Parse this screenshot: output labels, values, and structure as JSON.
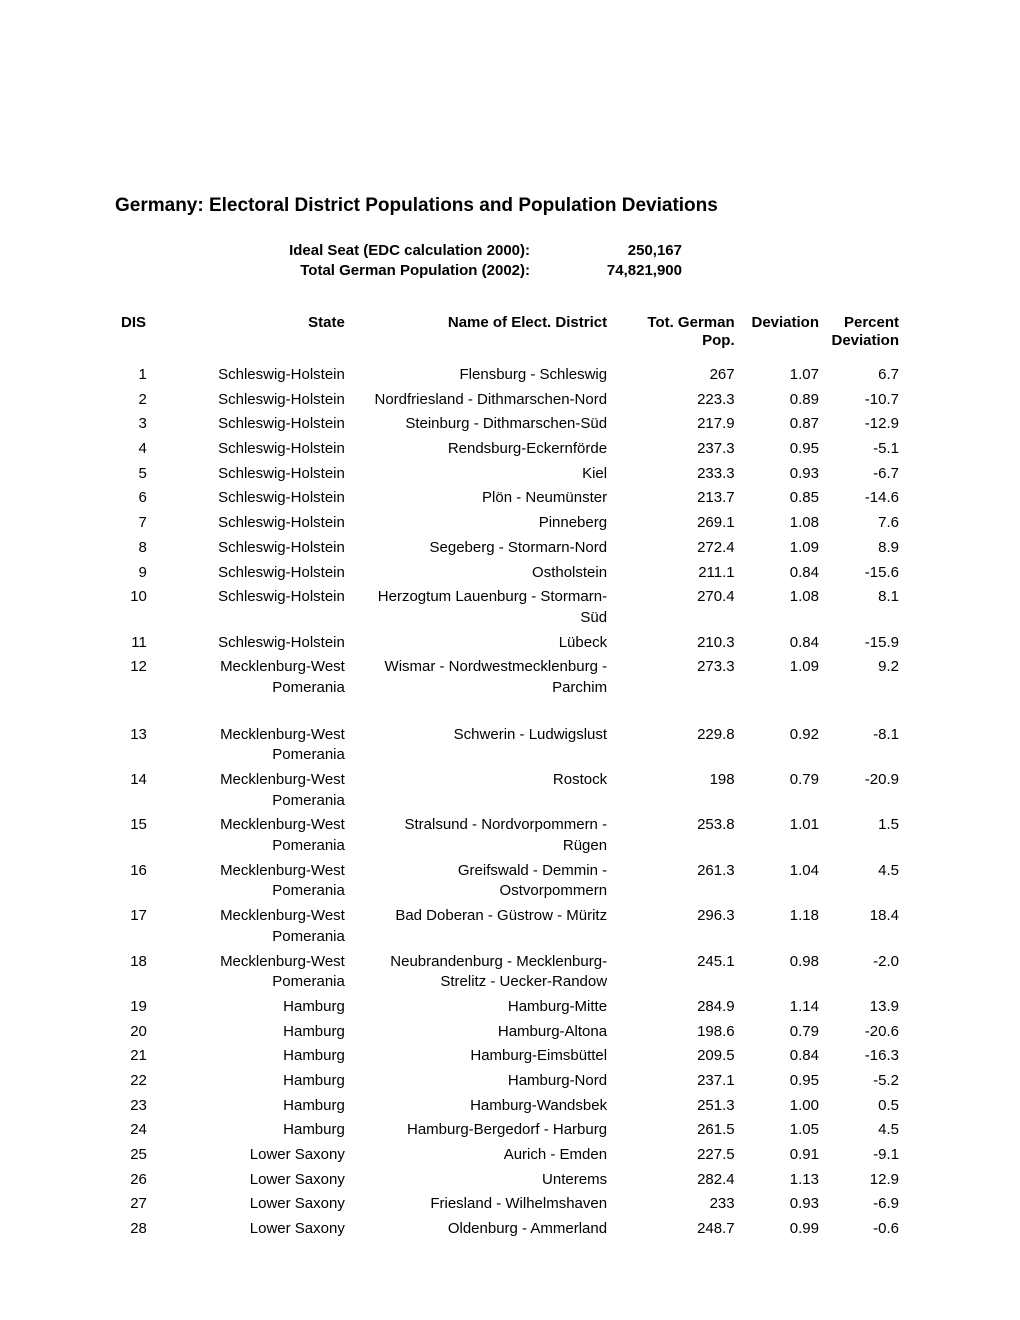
{
  "title": "Germany: Electoral District Populations and Population Deviations",
  "meta": {
    "ideal_label": "Ideal Seat (EDC calculation 2000):",
    "ideal_value": "250,167",
    "total_label": "Total German Population (2002):",
    "total_value": "74,821,900"
  },
  "columns": {
    "dis": "DIS",
    "state": "State",
    "name": "Name of Elect. District",
    "pop": "Tot. German Pop.",
    "dev": "Deviation",
    "pct1": "Percent",
    "pct2": "Deviation"
  },
  "rows": [
    {
      "dis": "1",
      "state": "Schleswig-Holstein",
      "name": "Flensburg - Schleswig",
      "pop": "267",
      "dev": "1.07",
      "pct": "6.7"
    },
    {
      "dis": "2",
      "state": "Schleswig-Holstein",
      "name": "Nordfriesland - Dithmarschen-Nord",
      "pop": "223.3",
      "dev": "0.89",
      "pct": "-10.7"
    },
    {
      "dis": "3",
      "state": "Schleswig-Holstein",
      "name": "Steinburg - Dithmarschen-Süd",
      "pop": "217.9",
      "dev": "0.87",
      "pct": "-12.9"
    },
    {
      "dis": "4",
      "state": "Schleswig-Holstein",
      "name": "Rendsburg-Eckernförde",
      "pop": "237.3",
      "dev": "0.95",
      "pct": "-5.1"
    },
    {
      "dis": "5",
      "state": "Schleswig-Holstein",
      "name": "Kiel",
      "pop": "233.3",
      "dev": "0.93",
      "pct": "-6.7"
    },
    {
      "dis": "6",
      "state": "Schleswig-Holstein",
      "name": "Plön - Neumünster",
      "pop": "213.7",
      "dev": "0.85",
      "pct": "-14.6"
    },
    {
      "dis": "7",
      "state": "Schleswig-Holstein",
      "name": "Pinneberg",
      "pop": "269.1",
      "dev": "1.08",
      "pct": "7.6"
    },
    {
      "dis": "8",
      "state": "Schleswig-Holstein",
      "name": "Segeberg - Stormarn-Nord",
      "pop": "272.4",
      "dev": "1.09",
      "pct": "8.9"
    },
    {
      "dis": "9",
      "state": "Schleswig-Holstein",
      "name": "Ostholstein",
      "pop": "211.1",
      "dev": "0.84",
      "pct": "-15.6"
    },
    {
      "dis": "10",
      "state": "Schleswig-Holstein",
      "name": "Herzogtum Lauenburg - Stormarn-Süd",
      "pop": "270.4",
      "dev": "1.08",
      "pct": "8.1"
    },
    {
      "dis": "11",
      "state": "Schleswig-Holstein",
      "name": "Lübeck",
      "pop": "210.3",
      "dev": "0.84",
      "pct": "-15.9"
    },
    {
      "dis": "12",
      "state": "Mecklenburg-West Pomerania",
      "name": "Wismar - Nordwestmecklenburg - Parchim",
      "pop": "273.3",
      "dev": "1.09",
      "pct": "9.2"
    }
  ],
  "rows2": [
    {
      "dis": "13",
      "state": "Mecklenburg-West Pomerania",
      "name": "Schwerin - Ludwigslust",
      "pop": "229.8",
      "dev": "0.92",
      "pct": "-8.1"
    },
    {
      "dis": "14",
      "state": "Mecklenburg-West Pomerania",
      "name": "Rostock",
      "pop": "198",
      "dev": "0.79",
      "pct": "-20.9"
    },
    {
      "dis": "15",
      "state": "Mecklenburg-West Pomerania",
      "name": "Stralsund - Nordvorpommern - Rügen",
      "pop": "253.8",
      "dev": "1.01",
      "pct": "1.5"
    },
    {
      "dis": "16",
      "state": "Mecklenburg-West Pomerania",
      "name": "Greifswald - Demmin - Ostvorpommern",
      "pop": "261.3",
      "dev": "1.04",
      "pct": "4.5"
    },
    {
      "dis": "17",
      "state": "Mecklenburg-West Pomerania",
      "name": "Bad Doberan - Güstrow - Müritz",
      "pop": "296.3",
      "dev": "1.18",
      "pct": "18.4"
    },
    {
      "dis": "18",
      "state": "Mecklenburg-West Pomerania",
      "name": "Neubrandenburg - Mecklenburg-Strelitz - Uecker-Randow",
      "pop": "245.1",
      "dev": "0.98",
      "pct": "-2.0"
    },
    {
      "dis": "19",
      "state": "Hamburg",
      "name": "Hamburg-Mitte",
      "pop": "284.9",
      "dev": "1.14",
      "pct": "13.9"
    },
    {
      "dis": "20",
      "state": "Hamburg",
      "name": "Hamburg-Altona",
      "pop": "198.6",
      "dev": "0.79",
      "pct": "-20.6"
    },
    {
      "dis": "21",
      "state": "Hamburg",
      "name": "Hamburg-Eimsbüttel",
      "pop": "209.5",
      "dev": "0.84",
      "pct": "-16.3"
    },
    {
      "dis": "22",
      "state": "Hamburg",
      "name": "Hamburg-Nord",
      "pop": "237.1",
      "dev": "0.95",
      "pct": "-5.2"
    },
    {
      "dis": "23",
      "state": "Hamburg",
      "name": "Hamburg-Wandsbek",
      "pop": "251.3",
      "dev": "1.00",
      "pct": "0.5"
    },
    {
      "dis": "24",
      "state": "Hamburg",
      "name": "Hamburg-Bergedorf - Harburg",
      "pop": "261.5",
      "dev": "1.05",
      "pct": "4.5"
    },
    {
      "dis": "25",
      "state": "Lower Saxony",
      "name": "Aurich - Emden",
      "pop": "227.5",
      "dev": "0.91",
      "pct": "-9.1"
    },
    {
      "dis": "26",
      "state": "Lower Saxony",
      "name": "Unterems",
      "pop": "282.4",
      "dev": "1.13",
      "pct": "12.9"
    },
    {
      "dis": "27",
      "state": "Lower Saxony",
      "name": "Friesland - Wilhelmshaven",
      "pop": "233",
      "dev": "0.93",
      "pct": "-6.9"
    },
    {
      "dis": "28",
      "state": "Lower Saxony",
      "name": "Oldenburg - Ammerland",
      "pop": "248.7",
      "dev": "0.99",
      "pct": "-0.6"
    }
  ],
  "style": {
    "background_color": "#ffffff",
    "text_color": "#000000",
    "title_fontsize": 19,
    "body_fontsize": 15,
    "font_family": "Arial"
  }
}
